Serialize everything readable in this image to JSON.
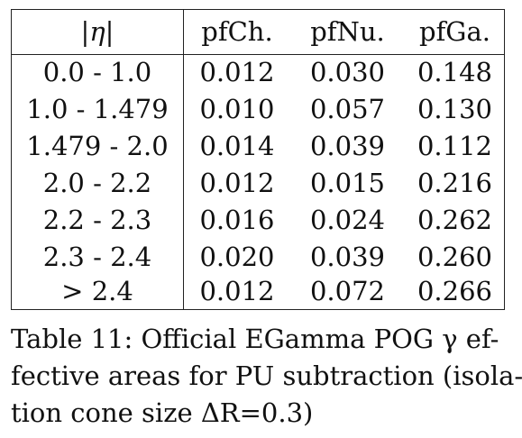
{
  "table": {
    "headers": [
      "|η|",
      "pfCh.",
      "pfNu.",
      "pfGa."
    ],
    "rows": [
      [
        "0.0 - 1.0",
        "0.012",
        "0.030",
        "0.148"
      ],
      [
        "1.0 - 1.479",
        "0.010",
        "0.057",
        "0.130"
      ],
      [
        "1.479 - 2.0",
        "0.014",
        "0.039",
        "0.112"
      ],
      [
        "2.0 - 2.2",
        "0.012",
        "0.015",
        "0.216"
      ],
      [
        "2.2 - 2.3",
        "0.016",
        "0.024",
        "0.262"
      ],
      [
        "2.3 - 2.4",
        "0.020",
        "0.039",
        "0.260"
      ],
      [
        "> 2.4",
        "0.012",
        "0.072",
        "0.266"
      ]
    ]
  },
  "caption": {
    "lines": [
      "Table 11: Official EGamma POG γ ef-",
      "fective areas for PU subtraction (isola-",
      "tion cone size ΔR=0.3)"
    ]
  }
}
